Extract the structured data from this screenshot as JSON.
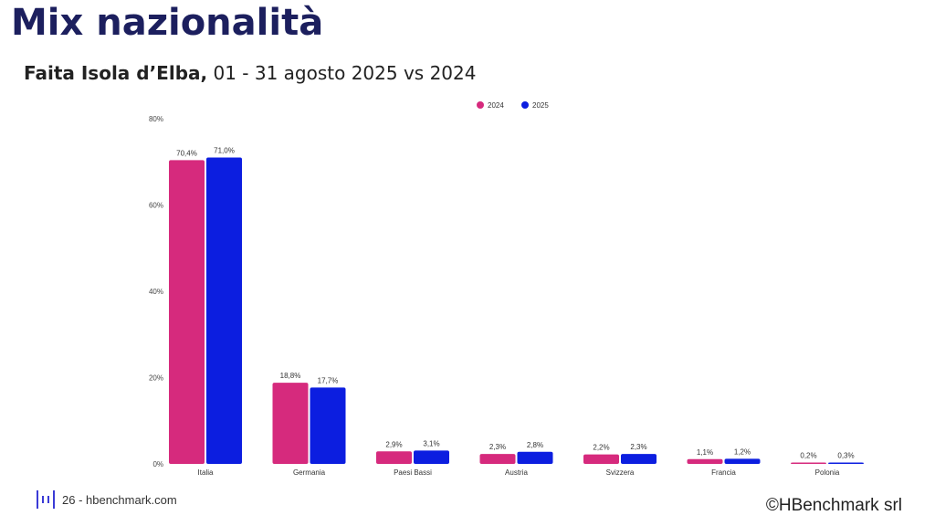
{
  "header": {
    "title": "Mix nazionalità",
    "subtitle_bold": "Faita Isola d’Elba,",
    "subtitle_rest": " 01 - 31 agosto 2025 vs 2024"
  },
  "footer": {
    "page": "26 - hbenchmark.com",
    "copyright": "©HBenchmark srl"
  },
  "chart_data": {
    "type": "bar",
    "title": "",
    "categories": [
      "Italia",
      "Germania",
      "Paesi Bassi",
      "Austria",
      "Svizzera",
      "Francia",
      "Polonia"
    ],
    "series": [
      {
        "name": "2024",
        "color": "#d62a7d",
        "values": [
          70.4,
          18.8,
          2.9,
          2.3,
          2.2,
          1.1,
          0.2
        ],
        "labels": [
          "70,4%",
          "18,8%",
          "2,9%",
          "2,3%",
          "2,2%",
          "1,1%",
          "0,2%"
        ]
      },
      {
        "name": "2025",
        "color": "#0c1ee0",
        "values": [
          71.0,
          17.7,
          3.1,
          2.8,
          2.3,
          1.2,
          0.3
        ],
        "labels": [
          "71,0%",
          "17,7%",
          "3,1%",
          "2,8%",
          "2,3%",
          "1,2%",
          "0,3%"
        ]
      }
    ],
    "yticks": [
      0,
      20,
      40,
      60,
      80
    ],
    "ytick_labels": [
      "0%",
      "20%",
      "40%",
      "60%",
      "80%"
    ],
    "ylim": [
      0,
      80
    ],
    "grid": false,
    "legend": "top-center"
  }
}
